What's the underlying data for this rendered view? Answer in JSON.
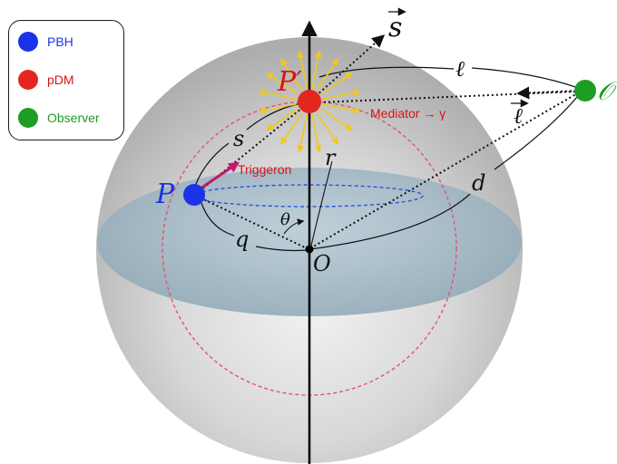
{
  "legend": {
    "items": [
      {
        "label": "PBH",
        "color": "#1b33e6"
      },
      {
        "label": "pDM",
        "color": "#e3271f"
      },
      {
        "label": "Observer",
        "color": "#1e9d24"
      }
    ]
  },
  "labels": {
    "s_vec": "s",
    "ell_vec": "ℓ",
    "ell": "ℓ",
    "p_prime": "P′",
    "p": "P",
    "s": "s",
    "r": "r",
    "theta": "θ",
    "q": "q",
    "d": "d",
    "origin": "O",
    "observer": "𝒪",
    "triggeron": "Triggeron",
    "mediator": "Mediator → γ"
  },
  "colors": {
    "pbh": "#1b33e6",
    "pdm": "#e3271f",
    "observer": "#1e9d24",
    "triggeron": "#c2186e",
    "mediator_text": "#d4141b",
    "rays": "#f2c81a",
    "dashed_circle": "#e0556a",
    "equator_dash": "#2b53e0"
  }
}
